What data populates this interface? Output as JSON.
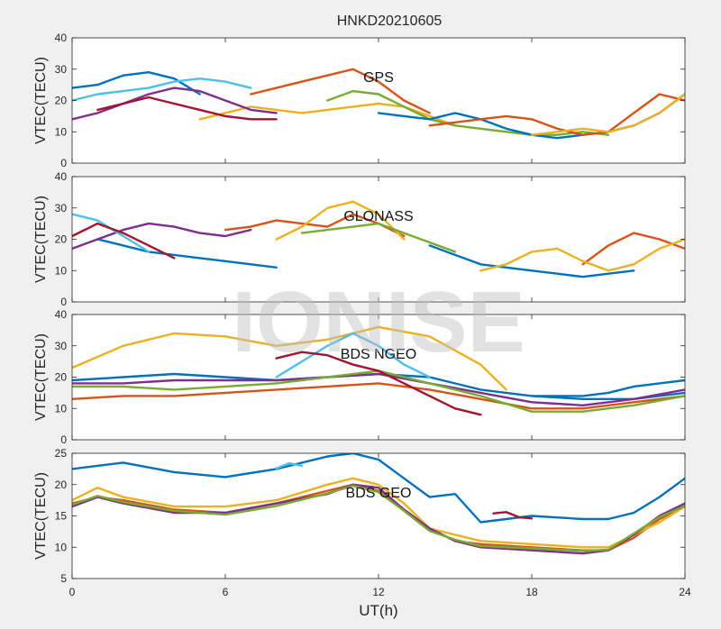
{
  "watermark": "IONISE",
  "chart_data": {
    "type": "line",
    "title": "HNKD20210605",
    "xlabel": "UT(h)",
    "xlim": [
      0,
      24
    ],
    "xticks": [
      0,
      6,
      12,
      18,
      24
    ],
    "xtick_labels": [
      "0",
      "6",
      "12",
      "18",
      "24"
    ],
    "colors": [
      "#0072BD",
      "#D95319",
      "#EDB120",
      "#7E2F8E",
      "#77AC30",
      "#4DBEEE",
      "#A2142F"
    ],
    "panels": [
      {
        "label": "GPS",
        "ylabel": "VTEC(TECU)",
        "ylim": [
          0,
          40
        ],
        "yticks": [
          0,
          10,
          20,
          30,
          40
        ],
        "ytick_labels": [
          "0",
          "10",
          "20",
          "30",
          "40"
        ],
        "series": [
          {
            "x": [
              0,
              1,
              2,
              3,
              4,
              5
            ],
            "y": [
              24,
              25,
              28,
              29,
              27,
              22
            ]
          },
          {
            "x": [
              7,
              8,
              9,
              10,
              11,
              12,
              13,
              14
            ],
            "y": [
              22,
              24,
              26,
              28,
              30,
              26,
              20,
              16
            ]
          },
          {
            "x": [
              5,
              6,
              7,
              8,
              9,
              10,
              11,
              12,
              13,
              14,
              15
            ],
            "y": [
              14,
              16,
              18,
              17,
              16,
              17,
              18,
              19,
              18,
              15,
              12
            ]
          },
          {
            "x": [
              0,
              1,
              2,
              3,
              4,
              5,
              6,
              7,
              8
            ],
            "y": [
              14,
              16,
              19,
              22,
              24,
              23,
              20,
              17,
              16
            ]
          },
          {
            "x": [
              10,
              11,
              12,
              13,
              14,
              15,
              16,
              17,
              18,
              19,
              20,
              21
            ],
            "y": [
              20,
              23,
              22,
              18,
              14,
              12,
              11,
              10,
              9,
              9,
              10,
              9
            ]
          },
          {
            "x": [
              0,
              1,
              2,
              3,
              4,
              5,
              6,
              7
            ],
            "y": [
              20,
              22,
              23,
              24,
              26,
              27,
              26,
              24
            ]
          },
          {
            "x": [
              1,
              2,
              3,
              4,
              5,
              6,
              7,
              8
            ],
            "y": [
              17,
              19,
              21,
              19,
              17,
              15,
              14,
              14
            ]
          },
          {
            "x": [
              12,
              13,
              14,
              15,
              16,
              17,
              18,
              19,
              20,
              21,
              22,
              23,
              24
            ],
            "y": [
              16,
              15,
              14,
              16,
              14,
              11,
              9,
              8,
              9,
              10,
              12,
              16,
              22
            ]
          },
          {
            "x": [
              14,
              15,
              16,
              17,
              18,
              19,
              20,
              21,
              22,
              23,
              24
            ],
            "y": [
              12,
              13,
              14,
              15,
              14,
              11,
              9,
              10,
              16,
              22,
              20
            ]
          },
          {
            "x": [
              18,
              19,
              20,
              21,
              22,
              23,
              24
            ],
            "y": [
              9,
              10,
              11,
              10,
              12,
              16,
              22
            ]
          }
        ]
      },
      {
        "label": "GLONASS",
        "ylabel": "VTEC(TECU)",
        "ylim": [
          0,
          40
        ],
        "yticks": [
          0,
          10,
          20,
          30,
          40
        ],
        "ytick_labels": [
          "0",
          "10",
          "20",
          "30",
          "40"
        ],
        "series": [
          {
            "x": [
              1,
              2,
              3,
              4,
              5,
              6,
              7,
              8
            ],
            "y": [
              20,
              18,
              16,
              15,
              14,
              13,
              12,
              11
            ]
          },
          {
            "x": [
              6,
              7,
              8,
              9,
              10,
              11,
              12,
              13
            ],
            "y": [
              23,
              24,
              26,
              25,
              24,
              28,
              25,
              21
            ]
          },
          {
            "x": [
              8,
              9,
              10,
              11,
              12,
              13
            ],
            "y": [
              20,
              24,
              30,
              32,
              28,
              20
            ]
          },
          {
            "x": [
              0,
              1,
              2,
              3,
              4,
              5,
              6,
              7
            ],
            "y": [
              17,
              20,
              23,
              25,
              24,
              22,
              21,
              23
            ]
          },
          {
            "x": [
              9,
              10,
              11,
              12,
              13,
              14,
              15
            ],
            "y": [
              22,
              23,
              24,
              25,
              22,
              19,
              16
            ]
          },
          {
            "x": [
              0,
              1,
              2,
              3
            ],
            "y": [
              28,
              26,
              21,
              16
            ]
          },
          {
            "x": [
              0,
              1,
              2,
              3,
              4
            ],
            "y": [
              21,
              25,
              22,
              18,
              14
            ]
          },
          {
            "x": [
              14,
              15,
              16,
              17,
              18,
              19,
              20,
              21,
              22
            ],
            "y": [
              18,
              15,
              12,
              11,
              10,
              9,
              8,
              9,
              10
            ]
          },
          {
            "x": [
              20,
              21,
              22,
              23,
              24
            ],
            "y": [
              12,
              18,
              22,
              20,
              17
            ]
          },
          {
            "x": [
              16,
              17,
              18,
              19,
              20,
              21,
              22,
              23,
              24
            ],
            "y": [
              10,
              12,
              16,
              17,
              13,
              10,
              12,
              17,
              20
            ]
          }
        ]
      },
      {
        "label": "BDS NGEO",
        "ylabel": "VTEC(TECU)",
        "ylim": [
          0,
          40
        ],
        "yticks": [
          0,
          10,
          20,
          30,
          40
        ],
        "ytick_labels": [
          "0",
          "10",
          "20",
          "30",
          "40"
        ],
        "series": [
          {
            "x": [
              0,
              2,
              4,
              6,
              8,
              10,
              12,
              14,
              16,
              18,
              20,
              22,
              24
            ],
            "y": [
              19,
              20,
              21,
              20,
              19,
              20,
              21,
              20,
              16,
              14,
              13,
              13,
              15
            ]
          },
          {
            "x": [
              0,
              2,
              4,
              6,
              8,
              10,
              12,
              14,
              16,
              18,
              20,
              22,
              24
            ],
            "y": [
              13,
              14,
              14,
              15,
              16,
              17,
              18,
              16,
              13,
              10,
              10,
              12,
              14
            ]
          },
          {
            "x": [
              0,
              2,
              4,
              6,
              8,
              10,
              12,
              14,
              16,
              17
            ],
            "y": [
              23,
              30,
              34,
              33,
              30,
              32,
              36,
              33,
              24,
              16
            ]
          },
          {
            "x": [
              0,
              2,
              4,
              6,
              8,
              10,
              12,
              14,
              16,
              18,
              20,
              22,
              24
            ],
            "y": [
              18,
              18,
              19,
              19,
              19,
              20,
              21,
              18,
              15,
              12,
              11,
              13,
              16
            ]
          },
          {
            "x": [
              0,
              2,
              4,
              6,
              8,
              10,
              12,
              14,
              16,
              18,
              20,
              22,
              24
            ],
            "y": [
              17,
              17,
              16,
              17,
              18,
              20,
              22,
              18,
              14,
              9,
              9,
              11,
              14
            ]
          },
          {
            "x": [
              8,
              9,
              10,
              11,
              12,
              13,
              14
            ],
            "y": [
              20,
              25,
              30,
              34,
              30,
              24,
              20
            ]
          },
          {
            "x": [
              8,
              9,
              10,
              11,
              12,
              13,
              14,
              15,
              16
            ],
            "y": [
              26,
              28,
              27,
              24,
              22,
              18,
              14,
              10,
              8
            ]
          },
          {
            "x": [
              18,
              19,
              20,
              21,
              22,
              23,
              24
            ],
            "y": [
              14,
              14,
              14,
              15,
              17,
              18,
              19
            ]
          }
        ]
      },
      {
        "label": "BDS GEO",
        "ylabel": "VTEC(TECU)",
        "ylim": [
          5,
          25
        ],
        "yticks": [
          5,
          10,
          15,
          20,
          25
        ],
        "ytick_labels": [
          "5",
          "10",
          "15",
          "20",
          "25"
        ],
        "series": [
          {
            "x": [
              0,
              2,
              4,
              6,
              8,
              10,
              11,
              12,
              13,
              14,
              15,
              16,
              18,
              20,
              21,
              22,
              23,
              24
            ],
            "y": [
              22.5,
              23.5,
              22,
              21.2,
              22.5,
              24.5,
              25,
              24,
              21,
              18,
              18.5,
              14,
              15,
              14.5,
              14.5,
              15.5,
              18,
              21
            ]
          },
          {
            "x": [
              0,
              1,
              2,
              4,
              6,
              8,
              10,
              11,
              12,
              13,
              14,
              15,
              16,
              18,
              20,
              21,
              22,
              23,
              24
            ],
            "y": [
              17,
              18,
              17.5,
              16,
              15.5,
              17,
              19,
              20,
              19,
              16,
              13,
              11,
              10.5,
              10,
              9.5,
              9.5,
              11.5,
              14.5,
              16.5
            ]
          },
          {
            "x": [
              0,
              1,
              2,
              4,
              6,
              8,
              10,
              11,
              12,
              13,
              14,
              15,
              16,
              18,
              20,
              21,
              22,
              23,
              24
            ],
            "y": [
              17.5,
              19.5,
              18,
              16.5,
              16.5,
              17.5,
              20,
              21,
              20,
              17,
              13,
              12,
              11,
              10.5,
              10,
              10,
              12,
              14,
              16.5
            ]
          },
          {
            "x": [
              0,
              1,
              2,
              4,
              6,
              8,
              10,
              11,
              12,
              13,
              14,
              15,
              16,
              18,
              20,
              21,
              22,
              23,
              24
            ],
            "y": [
              16.5,
              18,
              17,
              15.5,
              15.5,
              17,
              18.5,
              20,
              19.5,
              16,
              13,
              11,
              10,
              9.5,
              9,
              9.5,
              12,
              15,
              17
            ]
          },
          {
            "x": [
              0,
              1,
              2,
              4,
              6,
              8,
              10,
              11,
              12,
              13,
              14,
              15,
              16,
              18,
              20,
              21,
              22,
              23,
              24
            ],
            "y": [
              16.8,
              18.2,
              17.2,
              15.8,
              15.2,
              16.6,
              18.6,
              19.8,
              18.8,
              15.8,
              12.6,
              11.2,
              10.2,
              9.8,
              9.4,
              9.6,
              12.2,
              14.8,
              16.6
            ]
          },
          {
            "x": [
              8,
              8.5,
              9
            ],
            "y": [
              22.6,
              23.4,
              23
            ]
          },
          {
            "x": [
              16.5,
              17,
              17.5,
              18
            ],
            "y": [
              15.4,
              15.6,
              14.8,
              14.6
            ]
          }
        ]
      }
    ]
  }
}
